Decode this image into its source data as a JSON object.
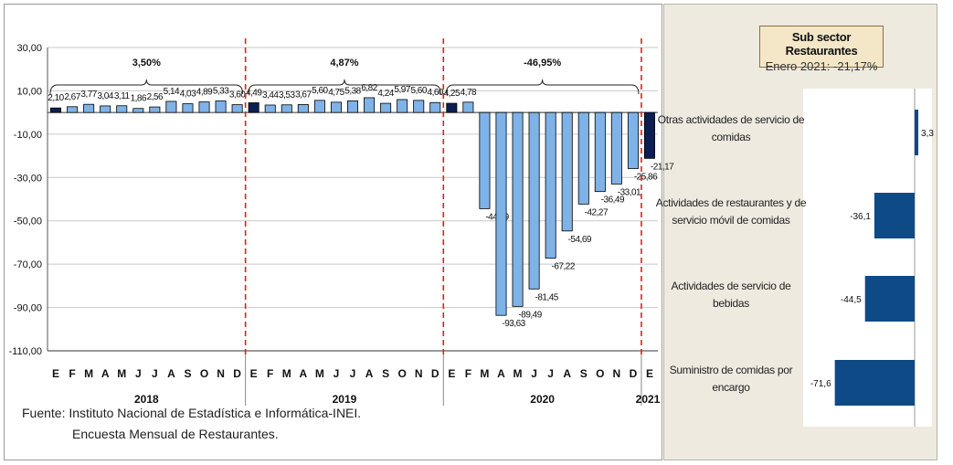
{
  "chart_data": [
    {
      "type": "bar",
      "xlabel": "",
      "ylabel": "",
      "ylim": [
        -110,
        30
      ],
      "yticks": [
        "30,00",
        "10,00",
        "-10,00",
        "-30,00",
        "-50,00",
        "-70,00",
        "-90,00",
        "-110,00"
      ],
      "ytick_values": [
        30,
        10,
        -10,
        -30,
        -50,
        -70,
        -90,
        -110
      ],
      "grid": true,
      "months": [
        "E",
        "F",
        "M",
        "A",
        "M",
        "J",
        "J",
        "A",
        "S",
        "O",
        "N",
        "D",
        "E",
        "F",
        "M",
        "A",
        "M",
        "J",
        "J",
        "A",
        "S",
        "O",
        "N",
        "D",
        "E",
        "F",
        "M",
        "A",
        "M",
        "J",
        "J",
        "A",
        "S",
        "O",
        "N",
        "D",
        "E"
      ],
      "values": [
        2.1,
        2.67,
        3.77,
        3.04,
        3.11,
        1.86,
        2.56,
        5.14,
        4.03,
        4.89,
        5.33,
        3.6,
        4.49,
        3.44,
        3.53,
        3.67,
        5.6,
        4.75,
        5.38,
        6.82,
        4.24,
        5.97,
        5.6,
        4.6,
        4.25,
        4.78,
        -44.39,
        -93.63,
        -89.49,
        -81.45,
        -67.22,
        -54.69,
        -42.27,
        -36.49,
        -33.01,
        -25.86,
        -21.17
      ],
      "value_labels": [
        "2,10",
        "2,67",
        "3,77",
        "3,04",
        "3,11",
        "1,86",
        "2,56",
        "5,14",
        "4,03",
        "4,89",
        "5,33",
        "3,60",
        "4,49",
        "3,44",
        "3,53",
        "3,67",
        "5,60",
        "4,75",
        "5,38",
        "6,82",
        "4,24",
        "5,97",
        "5,60",
        "4,60",
        "4,25",
        "4,78",
        "-44,39",
        "-93,63",
        "-89,49",
        "-81,45",
        "-67,22",
        "-54,69",
        "-42,27",
        "-36,49",
        "-33,01",
        "-25,86",
        "-21,17"
      ],
      "highlighted_indices": [
        0,
        12,
        24,
        36
      ],
      "years": [
        {
          "label": "2018",
          "start": 0,
          "end": 11
        },
        {
          "label": "2019",
          "start": 12,
          "end": 23
        },
        {
          "label": "2020",
          "start": 24,
          "end": 35
        },
        {
          "label": "2021",
          "start": 36,
          "end": 36
        }
      ],
      "annual_brackets": [
        {
          "label": "3,50%",
          "start": 0,
          "end": 11
        },
        {
          "label": "4,87%",
          "start": 12,
          "end": 23
        },
        {
          "label": "-46,95%",
          "start": 24,
          "end": 35
        }
      ],
      "colors": {
        "bar": "#7fb3e8",
        "bar_highlight": "#0d1f52",
        "divider": "#e02020",
        "grid": "#c8c8c8",
        "bar_stroke": "#000000"
      }
    },
    {
      "type": "bar",
      "orientation": "horizontal",
      "title": "Sub sector Restaurantes",
      "subtitle": "Enero 2021: -21,17%",
      "categories": [
        "Otras actividades de servicio de comidas",
        "Actividades de restaurantes y de servicio móvil de comidas",
        "Actividades de servicio de bebidas",
        "Suministro de comidas por encargo"
      ],
      "category_lines": [
        [
          "Otras actividades de servicio de",
          "comidas"
        ],
        [
          "Actividades de restaurantes y de",
          "servicio móvil de comidas"
        ],
        [
          "Actividades de servicio de",
          "bebidas"
        ],
        [
          "Suministro de comidas por",
          "encargo"
        ]
      ],
      "values": [
        3.3,
        -36.1,
        -44.5,
        -71.6
      ],
      "value_labels": [
        "3,3",
        "-36,1",
        "-44,5",
        "-71,6"
      ],
      "colors": {
        "bar": "#0e4a86"
      }
    }
  ],
  "source": {
    "line1": "Fuente:  Instituto  Nacional de Estadística e Informática-INEI.",
    "line2": "Encuesta Mensual de  Restaurantes."
  }
}
